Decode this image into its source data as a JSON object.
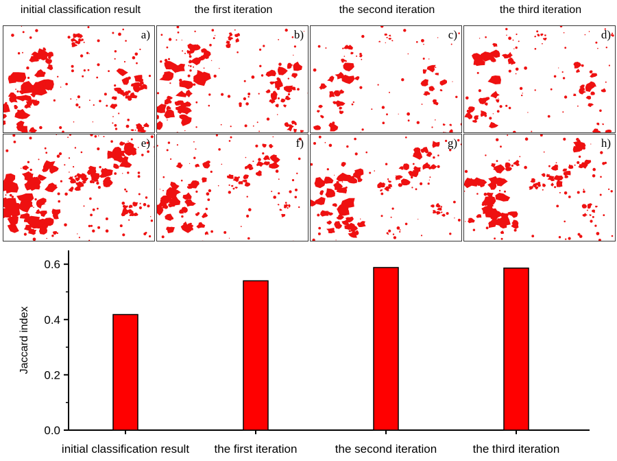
{
  "column_titles": [
    "initial classification result",
    "the first iteration",
    "the second iteration",
    "the third iteration"
  ],
  "panel_labels": [
    "a)",
    "b)",
    "c)",
    "d)",
    "e)",
    "f)",
    "g)",
    "h)"
  ],
  "colors": {
    "mask": "#ee1111",
    "bar": "#ff0000",
    "bar_border": "#000000"
  },
  "chart_data": {
    "type": "bar",
    "categories": [
      "initial classification result",
      "the first iteration",
      "the second iteration",
      "the third iteration"
    ],
    "values": [
      0.418,
      0.54,
      0.588,
      0.586
    ],
    "xlabel": "",
    "ylabel": "Jaccard index",
    "ylim": [
      0,
      0.65
    ],
    "yticks": [
      "0.0",
      "0.2",
      "0.4",
      "0.6"
    ],
    "grid": false
  }
}
